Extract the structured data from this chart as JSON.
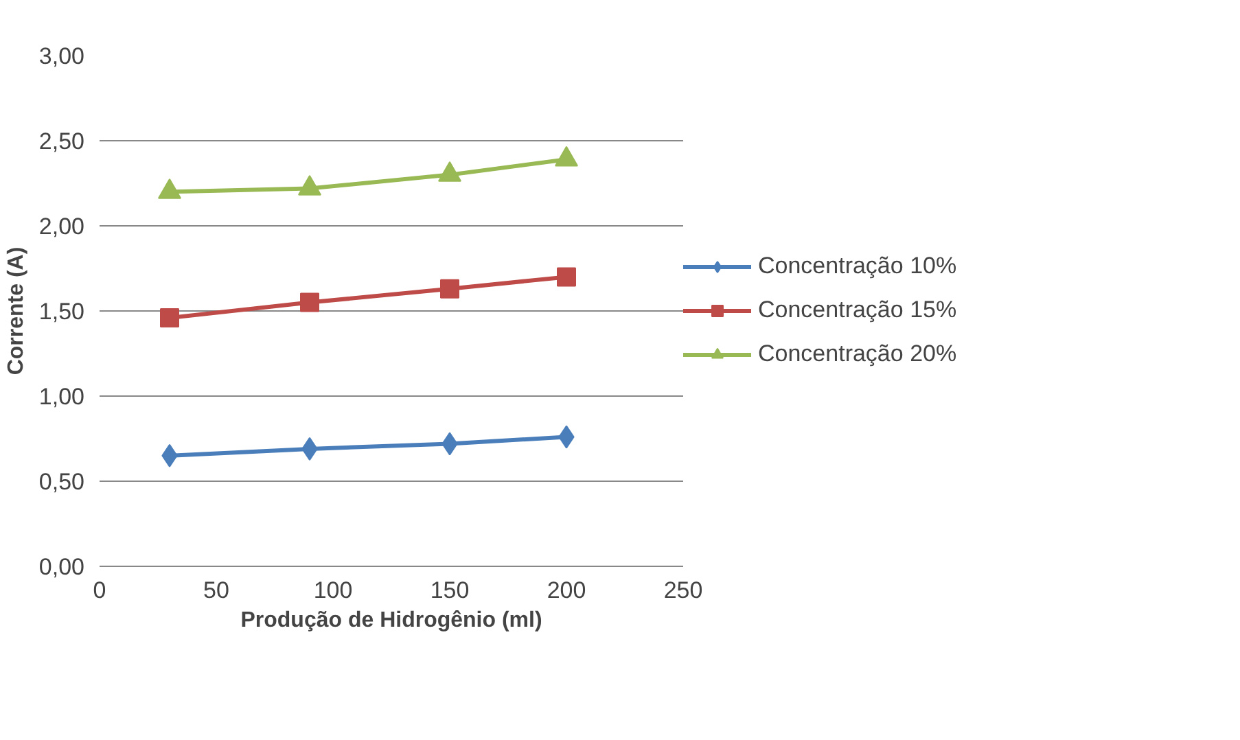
{
  "chart_data": {
    "type": "line",
    "xlabel": "Produção de Hidrogênio (ml)",
    "ylabel": "Corrente (A)",
    "x": [
      30,
      90,
      150,
      200
    ],
    "series": [
      {
        "name": "Concentração 10%",
        "color": "#4a7ebb",
        "marker": "diamond",
        "values": [
          0.65,
          0.69,
          0.72,
          0.76
        ]
      },
      {
        "name": "Concentração 15%",
        "color": "#be4b48",
        "marker": "square",
        "values": [
          1.46,
          1.55,
          1.63,
          1.7
        ]
      },
      {
        "name": "Concentração 20%",
        "color": "#98b954",
        "marker": "triangle",
        "values": [
          2.2,
          2.22,
          2.3,
          2.39
        ]
      }
    ],
    "xlim": [
      0,
      250
    ],
    "xticks": [
      0,
      50,
      100,
      150,
      200,
      250
    ],
    "ylim": [
      0,
      3
    ],
    "yticks": [
      {
        "value": 0,
        "label": "0,00"
      },
      {
        "value": 0.5,
        "label": "0,50"
      },
      {
        "value": 1,
        "label": "1,00"
      },
      {
        "value": 1.5,
        "label": "1,50"
      },
      {
        "value": 2,
        "label": "2,00"
      },
      {
        "value": 2.5,
        "label": "2,50"
      },
      {
        "value": 3,
        "label": "3,00"
      }
    ],
    "grid": "y",
    "legend": "right",
    "line_style": "solid"
  }
}
